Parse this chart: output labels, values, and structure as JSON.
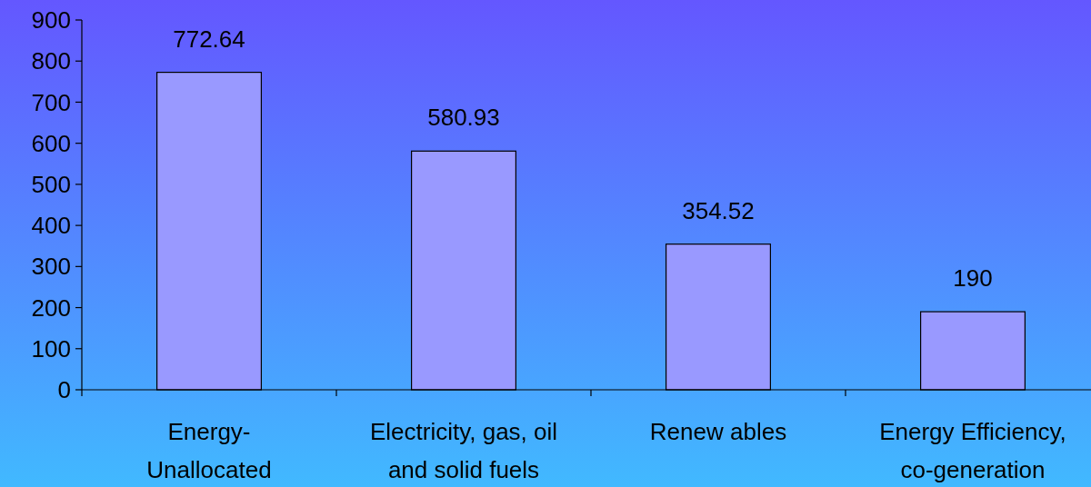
{
  "chart_data": {
    "type": "bar",
    "categories": [
      "Energy-\nUnallocated",
      "Electricity, gas, oil\nand solid fuels",
      "Renew ables",
      "Energy Efficiency,\nco-generation"
    ],
    "values": [
      772.64,
      580.93,
      354.52,
      190
    ],
    "color": "#9999ff",
    "ylim": [
      0,
      900
    ],
    "yticks": [
      0,
      100,
      200,
      300,
      400,
      500,
      600,
      700,
      800,
      900
    ],
    "data_labels": true
  }
}
